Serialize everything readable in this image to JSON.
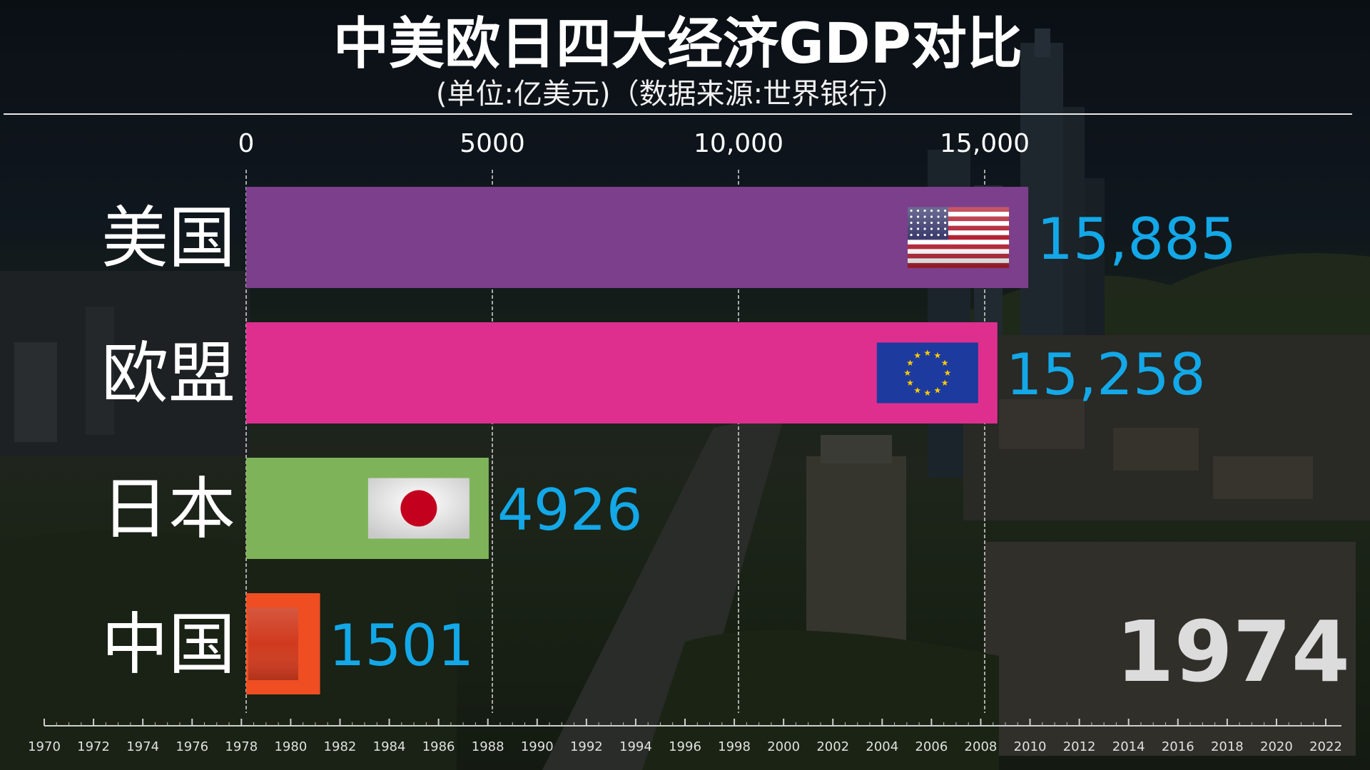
{
  "chart_data": {
    "type": "bar",
    "title": "中美欧日四大经济GDP对比",
    "subtitle": "(单位:亿美元)（数据来源:世界银行）",
    "year": "1974",
    "categories": [
      "美国",
      "欧盟",
      "日本",
      "中国"
    ],
    "values": [
      15885,
      15258,
      4926,
      1501
    ],
    "value_labels": [
      "15,885",
      "15,258",
      "4926",
      "1501"
    ],
    "flags": [
      "us-flag-icon",
      "eu-flag-icon",
      "japan-flag-icon",
      "china-flag-icon"
    ],
    "colors": [
      "#7b3f8c",
      "#de2f8f",
      "#7fb35a",
      "#ef4e22"
    ],
    "label_color": "#13a8e8",
    "xlim": [
      0,
      16000
    ],
    "x_ticks": [
      0,
      5000,
      10000,
      15000
    ],
    "x_tick_labels": [
      "0",
      "5000",
      "10,000",
      "15,000"
    ],
    "grid": true,
    "timeline": {
      "labels": [
        "1970",
        "1972",
        "1974",
        "1976",
        "1978",
        "1980",
        "1982",
        "1984",
        "1986",
        "1988",
        "1990",
        "1992",
        "1994",
        "1996",
        "1998",
        "2000",
        "2002",
        "2004",
        "2006",
        "2008",
        "2010",
        "2012",
        "2014",
        "2016",
        "2018",
        "2020",
        "2022"
      ]
    }
  }
}
